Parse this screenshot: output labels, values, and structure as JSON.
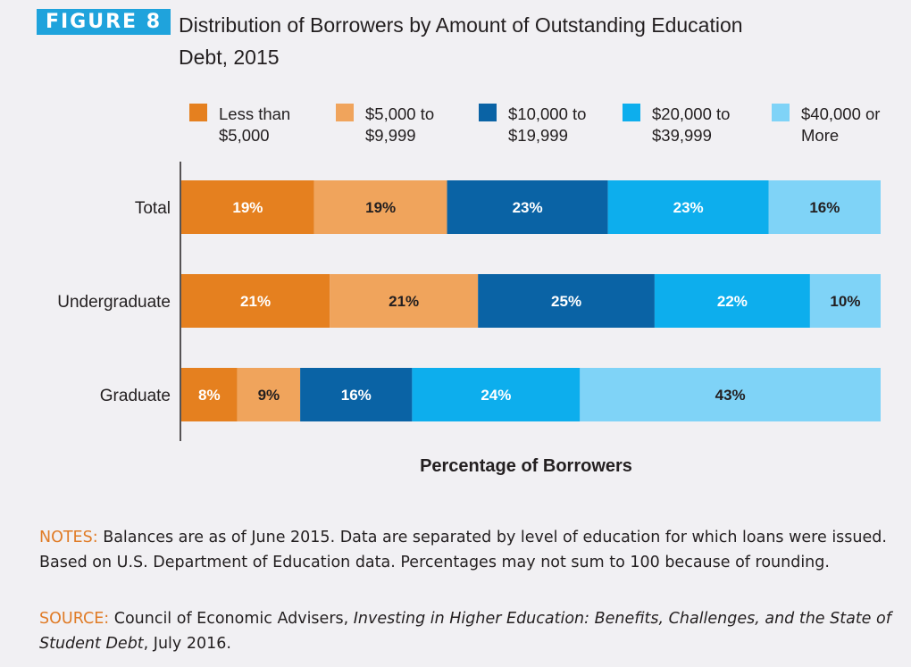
{
  "figure": {
    "badge": "FIGURE 8",
    "title_line1": "Distribution of Borrowers by Amount of Outstanding Education",
    "title_line2": "Debt, 2015"
  },
  "legend": [
    {
      "line1": "Less than",
      "line2": "$5,000",
      "color": "#e5801f"
    },
    {
      "line1": "$5,000 to",
      "line2": "$9,999",
      "color": "#f0a45c"
    },
    {
      "line1": "$10,000 to",
      "line2": "$19,999",
      "color": "#0a63a5"
    },
    {
      "line1": "$20,000 to",
      "line2": "$39,999",
      "color": "#0daeed"
    },
    {
      "line1": "$40,000 or",
      "line2": "More",
      "color": "#7fd3f7"
    }
  ],
  "chart_data": {
    "type": "bar",
    "orientation": "horizontal",
    "stacked": true,
    "categories": [
      "Total",
      "Undergraduate",
      "Graduate"
    ],
    "series": [
      {
        "name": "Less than $5,000",
        "values": [
          19,
          21,
          8
        ],
        "labels": [
          "19%",
          "21%",
          "8%"
        ],
        "color": "#e5801f",
        "label_color": "#ffffff"
      },
      {
        "name": "$5,000 to $9,999",
        "values": [
          19,
          21,
          9
        ],
        "labels": [
          "19%",
          "21%",
          "9%"
        ],
        "color": "#f0a45c",
        "label_color": "#231f20"
      },
      {
        "name": "$10,000 to $19,999",
        "values": [
          23,
          25,
          16
        ],
        "labels": [
          "23%",
          "25%",
          "16%"
        ],
        "color": "#0a63a5",
        "label_color": "#ffffff"
      },
      {
        "name": "$20,000 to $39,999",
        "values": [
          23,
          22,
          24
        ],
        "labels": [
          "23%",
          "22%",
          "24%"
        ],
        "color": "#0daeed",
        "label_color": "#ffffff"
      },
      {
        "name": "$40,000 or More",
        "values": [
          16,
          10,
          43
        ],
        "labels": [
          "16%",
          "10%",
          "43%"
        ],
        "color": "#7fd3f7",
        "label_color": "#231f20"
      }
    ],
    "xlabel": "Percentage of Borrowers",
    "legend_position": "top",
    "grid": false
  },
  "notes": {
    "lead": "NOTES:",
    "text": " Balances are as of June 2015. Data are separated by level of education for which loans were issued. Based on U.S. Department of Education data. Percentages may not sum to 100 because of rounding."
  },
  "source": {
    "lead": "SOURCE:",
    "text_before": " Council of Economic Advisers, ",
    "italic": "Investing in Higher Education: Benefits, Challenges, and the State of Student Debt",
    "text_after": ", July 2016."
  }
}
